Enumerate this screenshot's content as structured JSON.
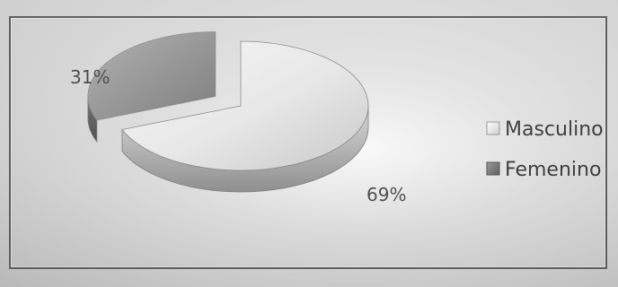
{
  "chart_data": {
    "type": "pie",
    "style": "3d-exploded",
    "slices": [
      {
        "name": "Masculino",
        "value": 69,
        "label": "69%",
        "color": "#e2e2e2"
      },
      {
        "name": "Femenino",
        "value": 31,
        "label": "31%",
        "color": "#9a9a9a"
      }
    ],
    "legend": {
      "placement": "right",
      "items": [
        "Masculino",
        "Femenino"
      ]
    }
  }
}
